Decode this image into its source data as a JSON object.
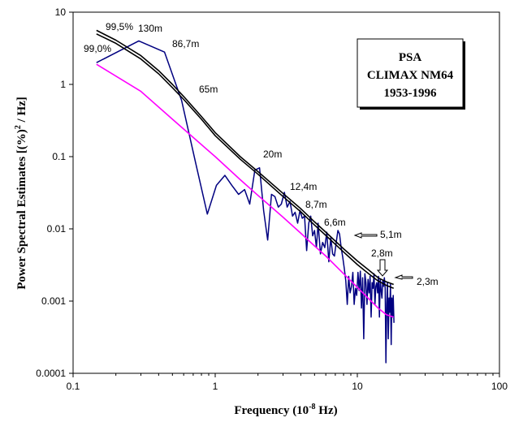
{
  "chart_data": {
    "type": "line",
    "xscale": "log",
    "yscale": "log",
    "xlim": [
      0.1,
      100
    ],
    "ylim": [
      0.0001,
      10
    ],
    "x_ticks": [
      "0.1",
      "1",
      "10",
      "100"
    ],
    "y_ticks": [
      "0.0001",
      "0.001",
      "0.01",
      "0.1",
      "1",
      "10"
    ],
    "xlabel_main": "Frequency  (10",
    "xlabel_sup": "-8",
    "xlabel_tail": "  Hz)",
    "ylabel_main": "Power Spectral Estimates [(%)",
    "ylabel_sup": "2",
    "ylabel_tail": " / Hz]",
    "legend_box": [
      "PSA",
      "CLIMAX NM64",
      "1953-1996"
    ],
    "annotations": [
      "99,5%",
      "130m",
      "99,0%",
      "86,7m",
      "65m",
      "20m",
      "12,4m",
      "8,7m",
      "6,6m",
      "5,1m",
      "2,8m",
      "2,3m"
    ],
    "series": [
      {
        "color": "#000080",
        "x": [
          0.146,
          0.29,
          0.44,
          0.58,
          0.73,
          0.88,
          1.02,
          1.17,
          1.31,
          1.46,
          1.61,
          1.75,
          1.9,
          2.05,
          2.19,
          2.34,
          2.49,
          2.63,
          2.78,
          2.92,
          3.07,
          3.21,
          3.36,
          3.5,
          3.65,
          3.8,
          3.95,
          4.1,
          4.25,
          4.4,
          4.55,
          4.7,
          4.85,
          5.0,
          5.15,
          5.3,
          5.5,
          5.7,
          5.9,
          6.1,
          6.3,
          6.5,
          6.7,
          6.9,
          7.1,
          7.3,
          7.5,
          7.7,
          7.9,
          8.1,
          8.3,
          8.5,
          8.7,
          8.9,
          9.1,
          9.3,
          9.5,
          9.7,
          9.9,
          10.1,
          10.3,
          10.5,
          10.7,
          10.9,
          11.1,
          11.3,
          11.5,
          11.7,
          11.9,
          12.1,
          12.3,
          12.5,
          12.7,
          12.9,
          13.1,
          13.3,
          13.5,
          13.7,
          13.9,
          14.1,
          14.3,
          14.5,
          14.7,
          14.9,
          15.1,
          15.3,
          15.5,
          15.7,
          15.9,
          16.1,
          16.3,
          16.5,
          16.7,
          16.9,
          17.1,
          17.3,
          17.5,
          17.7,
          17.9,
          18.1
        ],
        "y": [
          2.0,
          4.0,
          2.8,
          0.6,
          0.08,
          0.016,
          0.04,
          0.055,
          0.04,
          0.03,
          0.035,
          0.022,
          0.065,
          0.07,
          0.018,
          0.007,
          0.03,
          0.028,
          0.02,
          0.022,
          0.032,
          0.02,
          0.024,
          0.015,
          0.017,
          0.012,
          0.018,
          0.014,
          0.015,
          0.005,
          0.012,
          0.015,
          0.008,
          0.0095,
          0.0055,
          0.012,
          0.0045,
          0.0065,
          0.0055,
          0.009,
          0.0035,
          0.0075,
          0.0045,
          0.0042,
          0.0065,
          0.0095,
          0.0085,
          0.0055,
          0.004,
          0.0028,
          0.0019,
          0.0009,
          0.0022,
          0.0013,
          0.0016,
          0.0025,
          0.0009,
          0.0015,
          0.0012,
          0.0025,
          0.0014,
          0.0026,
          0.0008,
          0.0021,
          0.0003,
          0.0024,
          0.0018,
          0.0009,
          0.002,
          0.0013,
          0.0022,
          0.0006,
          0.0018,
          0.0015,
          0.0024,
          0.0009,
          0.0016,
          0.0018,
          0.0013,
          0.0022,
          0.0006,
          0.002,
          0.0014,
          0.0011,
          0.0019,
          0.0016,
          0.0021,
          0.0015,
          0.00014,
          0.0009,
          0.0018,
          0.0003,
          0.0011,
          0.0007,
          0.0017,
          0.00025,
          0.0011,
          0.0006,
          0.0012,
          0.0005
        ]
      },
      {
        "color": "#000000",
        "x": [
          0.146,
          0.2,
          0.3,
          0.4,
          0.5,
          0.6,
          0.8,
          1.0,
          1.5,
          2.0,
          3.0,
          4.0,
          5.0,
          6.0,
          8.0,
          10.0,
          12.0,
          14.0,
          16.0,
          18.0
        ],
        "y": [
          5.6,
          4.1,
          2.5,
          1.55,
          1.0,
          0.68,
          0.36,
          0.215,
          0.1,
          0.062,
          0.031,
          0.019,
          0.0125,
          0.009,
          0.0053,
          0.0036,
          0.0027,
          0.0021,
          0.00185,
          0.0017
        ]
      },
      {
        "color": "#000000",
        "x": [
          0.146,
          0.2,
          0.3,
          0.4,
          0.5,
          0.6,
          0.8,
          1.0,
          1.5,
          2.0,
          3.0,
          4.0,
          5.0,
          6.0,
          8.0,
          10.0,
          12.0,
          14.0,
          16.0,
          18.0
        ],
        "y": [
          5.0,
          3.7,
          2.25,
          1.4,
          0.9,
          0.62,
          0.33,
          0.195,
          0.092,
          0.057,
          0.028,
          0.0172,
          0.0113,
          0.0081,
          0.0048,
          0.0032,
          0.0024,
          0.0019,
          0.00165,
          0.0015
        ]
      },
      {
        "color": "#ff00ff",
        "x": [
          0.146,
          0.3,
          0.5,
          1.0,
          1.5,
          2.0,
          3.0,
          4.0,
          5.0,
          6.0,
          8.0,
          10.0,
          12.0,
          14.0,
          16.0,
          18.0
        ],
        "y": [
          1.9,
          0.8,
          0.33,
          0.1,
          0.048,
          0.029,
          0.0145,
          0.0087,
          0.0058,
          0.0042,
          0.0024,
          0.00155,
          0.00108,
          0.0008,
          0.00065,
          0.0006
        ]
      }
    ]
  }
}
